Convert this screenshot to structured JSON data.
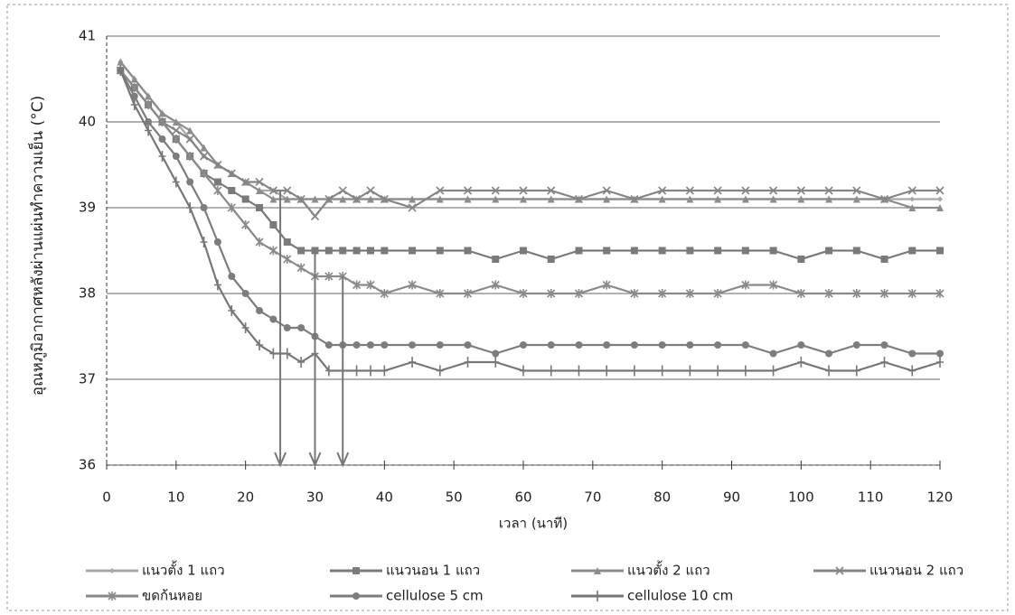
{
  "chart_data": {
    "type": "line",
    "x_label": "เวลา (นาที)",
    "y_label": "อุณหภูมิอากาศหลังผ่านแผ่นทำความเย็น (°C)",
    "x": [
      2,
      4,
      6,
      8,
      10,
      12,
      14,
      16,
      18,
      20,
      22,
      24,
      26,
      28,
      30,
      32,
      34,
      36,
      38,
      40,
      44,
      48,
      52,
      56,
      60,
      64,
      68,
      72,
      76,
      80,
      84,
      88,
      92,
      96,
      100,
      104,
      108,
      112,
      116,
      120
    ],
    "series": [
      {
        "name": "แนวตั้ง 1 แถว",
        "color": "#a8a8a8",
        "marker": "diamond",
        "values": [
          40.7,
          40.5,
          40.3,
          40.1,
          40.0,
          39.8,
          39.6,
          39.5,
          39.4,
          39.3,
          39.2,
          39.2,
          39.1,
          39.1,
          39.1,
          39.1,
          39.1,
          39.1,
          39.1,
          39.1,
          39.1,
          39.1,
          39.1,
          39.1,
          39.1,
          39.1,
          39.1,
          39.1,
          39.1,
          39.1,
          39.1,
          39.1,
          39.1,
          39.1,
          39.1,
          39.1,
          39.1,
          39.1,
          39.1,
          39.1
        ]
      },
      {
        "name": "แนวนอน 1 แถว",
        "color": "#7a7a7a",
        "marker": "square",
        "values": [
          40.6,
          40.4,
          40.2,
          40.0,
          39.8,
          39.6,
          39.4,
          39.3,
          39.2,
          39.1,
          39.0,
          38.8,
          38.6,
          38.5,
          38.5,
          38.5,
          38.5,
          38.5,
          38.5,
          38.5,
          38.5,
          38.5,
          38.5,
          38.4,
          38.5,
          38.4,
          38.5,
          38.5,
          38.5,
          38.5,
          38.5,
          38.5,
          38.5,
          38.5,
          38.4,
          38.5,
          38.5,
          38.4,
          38.5,
          38.5
        ]
      },
      {
        "name": "แนวตั้ง 2 แถว",
        "color": "#8c8c8c",
        "marker": "triangle",
        "values": [
          40.7,
          40.5,
          40.3,
          40.1,
          40.0,
          39.9,
          39.7,
          39.5,
          39.4,
          39.3,
          39.2,
          39.1,
          39.1,
          39.1,
          39.1,
          39.1,
          39.1,
          39.1,
          39.1,
          39.1,
          39.1,
          39.1,
          39.1,
          39.1,
          39.1,
          39.1,
          39.1,
          39.1,
          39.1,
          39.1,
          39.1,
          39.1,
          39.1,
          39.1,
          39.1,
          39.1,
          39.1,
          39.1,
          39.0,
          39.0
        ]
      },
      {
        "name": "แนวนอน 2 แถว",
        "color": "#858585",
        "marker": "x",
        "values": [
          40.6,
          40.4,
          40.2,
          40.0,
          39.9,
          39.8,
          39.6,
          39.5,
          39.4,
          39.3,
          39.3,
          39.2,
          39.2,
          39.1,
          38.9,
          39.1,
          39.2,
          39.1,
          39.2,
          39.1,
          39.0,
          39.2,
          39.2,
          39.2,
          39.2,
          39.2,
          39.1,
          39.2,
          39.1,
          39.2,
          39.2,
          39.2,
          39.2,
          39.2,
          39.2,
          39.2,
          39.2,
          39.1,
          39.2,
          39.2
        ]
      },
      {
        "name": "ขดก้นหอย",
        "color": "#8a8a8a",
        "marker": "asterisk",
        "values": [
          40.6,
          40.4,
          40.2,
          40.0,
          39.8,
          39.6,
          39.4,
          39.2,
          39.0,
          38.8,
          38.6,
          38.5,
          38.4,
          38.3,
          38.2,
          38.2,
          38.2,
          38.1,
          38.1,
          38.0,
          38.1,
          38.0,
          38.0,
          38.1,
          38.0,
          38.0,
          38.0,
          38.1,
          38.0,
          38.0,
          38.0,
          38.0,
          38.1,
          38.1,
          38.0,
          38.0,
          38.0,
          38.0,
          38.0,
          38.0
        ]
      },
      {
        "name": "cellulose 5 cm",
        "color": "#7d7d7d",
        "marker": "circle",
        "values": [
          40.6,
          40.3,
          40.0,
          39.8,
          39.6,
          39.3,
          39.0,
          38.6,
          38.2,
          38.0,
          37.8,
          37.7,
          37.6,
          37.6,
          37.5,
          37.4,
          37.4,
          37.4,
          37.4,
          37.4,
          37.4,
          37.4,
          37.4,
          37.3,
          37.4,
          37.4,
          37.4,
          37.4,
          37.4,
          37.4,
          37.4,
          37.4,
          37.4,
          37.3,
          37.4,
          37.3,
          37.4,
          37.4,
          37.3,
          37.3
        ]
      },
      {
        "name": "cellulose 10 cm",
        "color": "#777777",
        "marker": "plus",
        "values": [
          40.6,
          40.2,
          39.9,
          39.6,
          39.3,
          39.0,
          38.6,
          38.1,
          37.8,
          37.6,
          37.4,
          37.3,
          37.3,
          37.2,
          37.3,
          37.1,
          37.1,
          37.1,
          37.1,
          37.1,
          37.2,
          37.1,
          37.2,
          37.2,
          37.1,
          37.1,
          37.1,
          37.1,
          37.1,
          37.1,
          37.1,
          37.1,
          37.1,
          37.1,
          37.2,
          37.1,
          37.1,
          37.2,
          37.1,
          37.2
        ]
      }
    ],
    "arrows": [
      {
        "x": 25,
        "y": 39.2
      },
      {
        "x": 30,
        "y": 38.5
      },
      {
        "x": 34,
        "y": 38.2
      }
    ],
    "xlim": [
      0,
      120
    ],
    "xticks": [
      0,
      10,
      20,
      30,
      40,
      50,
      60,
      70,
      80,
      90,
      100,
      110,
      120
    ],
    "ylim": [
      36,
      41
    ],
    "yticks": [
      36,
      37,
      38,
      39,
      40,
      41
    ],
    "grid": true
  }
}
